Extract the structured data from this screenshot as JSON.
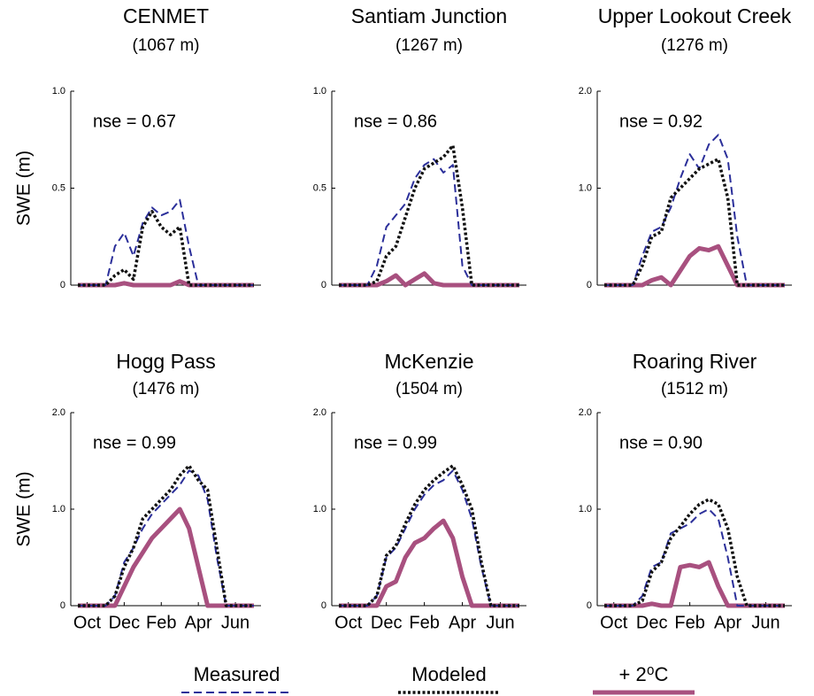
{
  "chart_data": [
    {
      "type": "line",
      "title": "CENMET",
      "subtitle": "(1067 m)",
      "annotation": "nse =  0.67",
      "ylabel": "SWE (m)",
      "categories": [
        null,
        null,
        null,
        null,
        null,
        null,
        null,
        null,
        null,
        null,
        null,
        null,
        null,
        null,
        null,
        null,
        null,
        null,
        null,
        null
      ],
      "ylim": [
        0,
        1
      ],
      "yticks": [
        0,
        0.5,
        {
          "value": 1,
          "label": "1.0"
        }
      ],
      "series": [
        {
          "values": [
            0,
            0,
            0,
            0,
            0.2,
            0.27,
            0.15,
            0.32,
            0.4,
            0.36,
            0.38,
            0.44,
            0.2,
            0,
            0,
            0,
            0,
            0,
            0,
            0
          ]
        },
        {
          "values": [
            0,
            0,
            0,
            0,
            0.05,
            0.08,
            0.03,
            0.3,
            0.38,
            0.3,
            0.26,
            0.3,
            0,
            0,
            0,
            0,
            0,
            0,
            0,
            0
          ]
        },
        {
          "values": [
            0,
            0,
            0,
            0,
            0,
            0.01,
            0,
            0,
            0,
            0,
            0,
            0.02,
            0,
            0,
            0,
            0,
            0,
            0,
            0,
            0
          ]
        }
      ]
    },
    {
      "type": "line",
      "title": "Santiam Junction",
      "subtitle": "(1267 m)",
      "annotation": "nse =  0.86",
      "categories": [
        null,
        null,
        null,
        null,
        null,
        null,
        null,
        null,
        null,
        null,
        null,
        null,
        null,
        null,
        null,
        null,
        null,
        null,
        null,
        null
      ],
      "ylim": [
        0,
        1
      ],
      "yticks": [
        0,
        0.5,
        {
          "value": 1,
          "label": "1.0"
        }
      ],
      "series": [
        {
          "values": [
            0,
            0,
            0,
            0,
            0.1,
            0.3,
            0.36,
            0.42,
            0.55,
            0.62,
            0.65,
            0.58,
            0.62,
            0.1,
            0,
            0,
            0,
            0,
            0,
            0
          ]
        },
        {
          "values": [
            0,
            0,
            0,
            0,
            0.02,
            0.15,
            0.2,
            0.35,
            0.5,
            0.6,
            0.63,
            0.66,
            0.72,
            0.4,
            0,
            0,
            0,
            0,
            0,
            0
          ]
        },
        {
          "values": [
            0,
            0,
            0,
            0,
            0,
            0.02,
            0.05,
            0,
            0.03,
            0.06,
            0.01,
            0,
            0,
            0,
            0,
            0,
            0,
            0,
            0,
            0
          ]
        }
      ]
    },
    {
      "type": "line",
      "title": "Upper Lookout Creek",
      "subtitle": "(1276 m)",
      "annotation": "nse =  0.92",
      "categories": [
        null,
        null,
        null,
        null,
        null,
        null,
        null,
        null,
        null,
        null,
        null,
        null,
        null,
        null,
        null,
        null,
        null,
        null,
        null,
        null
      ],
      "ylim": [
        0,
        2
      ],
      "yticks": [
        0,
        {
          "value": 1,
          "label": "1.0"
        },
        {
          "value": 2,
          "label": "2.0"
        }
      ],
      "series": [
        {
          "values": [
            0,
            0,
            0,
            0,
            0.3,
            0.55,
            0.6,
            0.8,
            1.1,
            1.35,
            1.2,
            1.45,
            1.55,
            1.3,
            0.5,
            0,
            0,
            0,
            0,
            0
          ]
        },
        {
          "values": [
            0,
            0,
            0,
            0,
            0.2,
            0.5,
            0.55,
            0.9,
            1.0,
            1.1,
            1.2,
            1.25,
            1.3,
            0.9,
            0,
            0,
            0,
            0,
            0,
            0
          ]
        },
        {
          "values": [
            0,
            0,
            0,
            0,
            0,
            0.05,
            0.08,
            0,
            0.15,
            0.3,
            0.38,
            0.36,
            0.4,
            0.2,
            0,
            0,
            0,
            0,
            0,
            0
          ]
        }
      ]
    },
    {
      "type": "line",
      "title": "Hogg Pass",
      "subtitle": "(1476 m)",
      "annotation": "nse =  0.99",
      "ylabel": "SWE (m)",
      "categories": [
        null,
        "Oct",
        null,
        null,
        null,
        "Dec",
        null,
        null,
        null,
        "Feb",
        null,
        null,
        null,
        "Apr",
        null,
        null,
        null,
        "Jun",
        null,
        null
      ],
      "ylim": [
        0,
        2
      ],
      "yticks": [
        0,
        {
          "value": 1,
          "label": "1.0"
        },
        {
          "value": 2,
          "label": "2.0"
        }
      ],
      "series": [
        {
          "values": [
            0,
            0,
            0,
            0,
            0.1,
            0.45,
            0.6,
            0.8,
            0.95,
            1.05,
            1.15,
            1.25,
            1.4,
            1.35,
            1.1,
            0.5,
            0,
            0,
            0,
            0
          ]
        },
        {
          "values": [
            0,
            0,
            0,
            0,
            0.1,
            0.4,
            0.6,
            0.9,
            1.0,
            1.1,
            1.2,
            1.35,
            1.45,
            1.3,
            1.2,
            0.6,
            0,
            0,
            0,
            0
          ]
        },
        {
          "values": [
            0,
            0,
            0,
            0,
            0,
            0.2,
            0.4,
            0.55,
            0.7,
            0.8,
            0.9,
            1.0,
            0.8,
            0.4,
            0,
            0,
            0,
            0,
            0,
            0
          ]
        }
      ]
    },
    {
      "type": "line",
      "title": "McKenzie",
      "subtitle": "(1504 m)",
      "annotation": "nse =  0.99",
      "categories": [
        null,
        "Oct",
        null,
        null,
        null,
        "Dec",
        null,
        null,
        null,
        "Feb",
        null,
        null,
        null,
        "Apr",
        null,
        null,
        null,
        "Jun",
        null,
        null
      ],
      "ylim": [
        0,
        2
      ],
      "yticks": [
        0,
        {
          "value": 1,
          "label": "1.0"
        },
        {
          "value": 2,
          "label": "2.0"
        }
      ],
      "series": [
        {
          "values": [
            0,
            0,
            0,
            0,
            0.1,
            0.5,
            0.6,
            0.8,
            1.0,
            1.15,
            1.25,
            1.3,
            1.4,
            1.2,
            0.9,
            0.4,
            0,
            0,
            0,
            0
          ]
        },
        {
          "values": [
            0,
            0,
            0,
            0,
            0.1,
            0.52,
            0.62,
            0.85,
            1.05,
            1.2,
            1.3,
            1.38,
            1.45,
            1.25,
            1.0,
            0.45,
            0,
            0,
            0,
            0
          ]
        },
        {
          "values": [
            0,
            0,
            0,
            0,
            0,
            0.2,
            0.25,
            0.5,
            0.65,
            0.7,
            0.8,
            0.88,
            0.7,
            0.3,
            0,
            0,
            0,
            0,
            0,
            0
          ]
        }
      ]
    },
    {
      "type": "line",
      "title": "Roaring River",
      "subtitle": "(1512 m)",
      "annotation": "nse =  0.90",
      "categories": [
        null,
        "Oct",
        null,
        null,
        null,
        "Dec",
        null,
        null,
        null,
        "Feb",
        null,
        null,
        null,
        "Apr",
        null,
        null,
        null,
        "Jun",
        null,
        null
      ],
      "ylim": [
        0,
        2
      ],
      "yticks": [
        0,
        {
          "value": 1,
          "label": "1.0"
        },
        {
          "value": 2,
          "label": "2.0"
        }
      ],
      "series": [
        {
          "values": [
            0,
            0,
            0,
            0,
            0.1,
            0.4,
            0.45,
            0.75,
            0.8,
            0.85,
            0.95,
            1.0,
            0.9,
            0.5,
            0,
            0,
            0,
            0,
            0,
            0
          ]
        },
        {
          "values": [
            0,
            0,
            0,
            0,
            0.05,
            0.35,
            0.45,
            0.7,
            0.82,
            0.95,
            1.05,
            1.1,
            1.05,
            0.8,
            0.3,
            0,
            0,
            0,
            0,
            0
          ]
        },
        {
          "values": [
            0,
            0,
            0,
            0,
            0,
            0.02,
            0,
            0,
            0.4,
            0.42,
            0.4,
            0.45,
            0.2,
            0,
            0,
            0,
            0,
            0,
            0,
            0
          ]
        }
      ]
    }
  ],
  "legend": [
    {
      "name": "Measured",
      "color": "#2b2f9a",
      "style": "dashed"
    },
    {
      "name": "Modeled",
      "color": "#111111",
      "style": "dotted"
    },
    {
      "name": "+ 2⁰C",
      "color": "#a8507f",
      "style": "solid"
    }
  ]
}
